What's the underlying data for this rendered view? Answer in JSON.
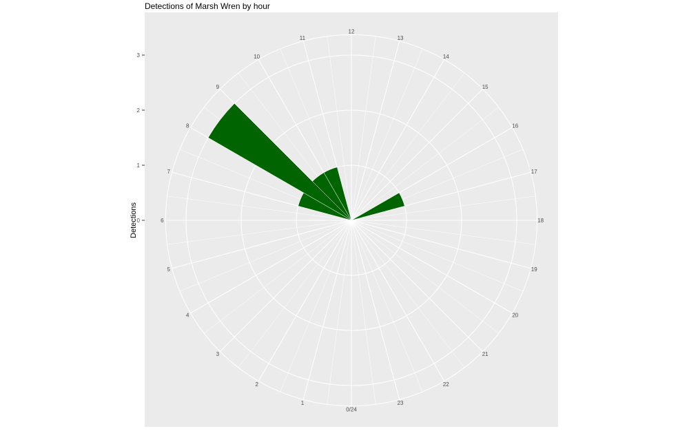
{
  "chart_data": {
    "type": "bar",
    "coord": "polar",
    "title": "Detections of Marsh Wren by hour",
    "xlabel": "",
    "ylabel": "Detections",
    "x_tick_labels": [
      "0/24",
      "1",
      "2",
      "3",
      "4",
      "5",
      "6",
      "7",
      "8",
      "9",
      "10",
      "11",
      "12",
      "13",
      "14",
      "15",
      "16",
      "17",
      "18",
      "19",
      "20",
      "21",
      "22",
      "23"
    ],
    "y_ticks": [
      0,
      1,
      2,
      3
    ],
    "ylim": [
      0,
      3.37
    ],
    "categories": [
      7,
      8,
      9,
      10,
      16
    ],
    "values": [
      1,
      3,
      1,
      1,
      1
    ],
    "bar_color": "#006400",
    "panel_color": "#EBEBEB",
    "grid": true
  }
}
